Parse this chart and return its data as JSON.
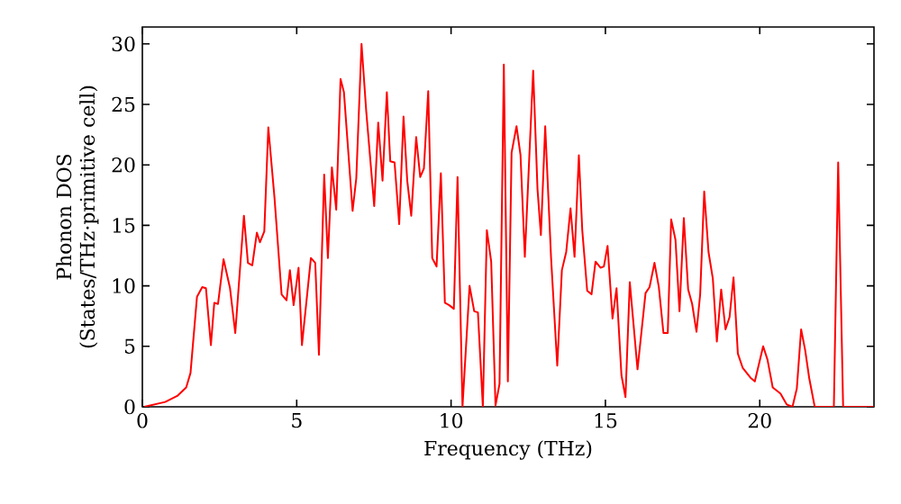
{
  "chart_data": {
    "type": "line",
    "xlabel": "Frequency (THz)",
    "ylabel": "Phonon DOS (States/THz·primitive cell)",
    "xlim": [
      0,
      23.7
    ],
    "ylim": [
      0,
      31.4
    ],
    "xticks": [
      0,
      5,
      10,
      15,
      20
    ],
    "yticks": [
      0,
      5,
      10,
      15,
      20,
      25,
      30
    ],
    "grid": false,
    "marker": "none",
    "line_style": "solid",
    "x": [
      0.06,
      0.74,
      1.13,
      1.42,
      1.56,
      1.77,
      1.94,
      2.06,
      2.22,
      2.33,
      2.45,
      2.63,
      2.84,
      3.01,
      3.29,
      3.42,
      3.56,
      3.71,
      3.81,
      3.95,
      4.08,
      4.28,
      4.51,
      4.67,
      4.78,
      4.9,
      5.06,
      5.17,
      5.46,
      5.6,
      5.72,
      5.89,
      6.01,
      6.14,
      6.28,
      6.42,
      6.53,
      6.81,
      6.93,
      7.1,
      7.25,
      7.51,
      7.64,
      7.78,
      7.92,
      8.03,
      8.17,
      8.32,
      8.46,
      8.58,
      8.71,
      8.87,
      9.0,
      9.12,
      9.26,
      9.39,
      9.53,
      9.67,
      9.8,
      9.94,
      10.09,
      10.21,
      10.37,
      10.6,
      10.75,
      10.87,
      11.03,
      11.16,
      11.3,
      11.44,
      11.57,
      11.71,
      11.84,
      11.96,
      12.12,
      12.25,
      12.39,
      12.66,
      12.8,
      12.91,
      13.05,
      13.24,
      13.44,
      13.59,
      13.73,
      13.87,
      14.0,
      14.14,
      14.25,
      14.41,
      14.55,
      14.68,
      14.84,
      14.95,
      15.07,
      15.23,
      15.36,
      15.52,
      15.65,
      15.79,
      16.04,
      16.3,
      16.43,
      16.59,
      16.73,
      16.88,
      17.02,
      17.13,
      17.27,
      17.4,
      17.54,
      17.68,
      17.81,
      17.95,
      18.07,
      18.2,
      18.34,
      18.48,
      18.61,
      18.75,
      18.89,
      19.02,
      19.15,
      19.29,
      19.45,
      19.7,
      19.84,
      20.11,
      20.25,
      20.42,
      20.67,
      20.87,
      21.06,
      21.2,
      21.34,
      21.47,
      21.6,
      21.78,
      22.4,
      22.54,
      22.7,
      23.69
    ],
    "series": [
      {
        "color": "#ff0000",
        "values": [
          0,
          0.4,
          0.9,
          1.6,
          2.8,
          9.1,
          9.9,
          9.8,
          5.1,
          8.6,
          8.5,
          12.2,
          9.8,
          6.1,
          15.8,
          11.9,
          11.7,
          14.4,
          13.6,
          14.5,
          23.1,
          17.3,
          9.3,
          8.8,
          11.3,
          8.4,
          11.5,
          5.1,
          12.3,
          11.9,
          4.3,
          19.2,
          12.3,
          19.8,
          16.3,
          27.1,
          26.0,
          16.2,
          18.9,
          30.0,
          24.5,
          16.6,
          23.5,
          18.7,
          26.0,
          20.3,
          20.2,
          15.1,
          24.0,
          18.7,
          15.8,
          22.3,
          19.0,
          19.7,
          26.1,
          12.3,
          11.6,
          19.3,
          8.6,
          8.4,
          8.1,
          19.0,
          0,
          10.0,
          7.9,
          7.8,
          0,
          14.6,
          12.0,
          0.1,
          1.9,
          28.3,
          2.1,
          21.0,
          23.2,
          20.8,
          12.4,
          27.8,
          18.0,
          14.2,
          23.2,
          12.3,
          3.4,
          11.3,
          12.8,
          16.4,
          12.4,
          20.8,
          14.6,
          9.6,
          9.3,
          12.0,
          11.5,
          11.6,
          13.3,
          7.3,
          9.8,
          2.6,
          0.8,
          10.3,
          3.1,
          9.4,
          9.9,
          11.9,
          9.9,
          6.1,
          6.1,
          15.5,
          13.8,
          7.9,
          15.6,
          9.7,
          8.5,
          6.2,
          9.3,
          17.8,
          12.8,
          10.6,
          5.4,
          9.7,
          6.4,
          7.4,
          10.7,
          4.4,
          3.2,
          2.4,
          2.1,
          5.0,
          3.9,
          1.6,
          1.1,
          0.2,
          0,
          1.5,
          6.4,
          4.7,
          2.4,
          0,
          0,
          20.2,
          0,
          0
        ]
      }
    ]
  }
}
